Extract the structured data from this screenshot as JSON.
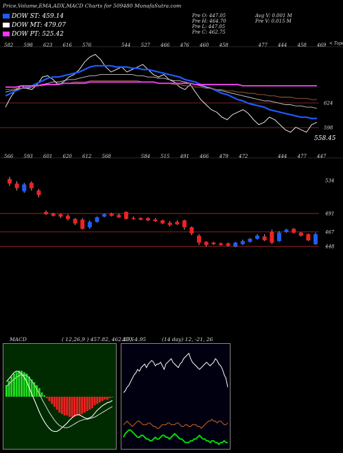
{
  "header": {
    "title": "Price,Volume,EMA,ADX,MACD Charts for 509480  MunafaSutra.com"
  },
  "legend": [
    {
      "label": "DOW ST: 459.14",
      "color": "#1e5cff"
    },
    {
      "label": "DOW MT: 479.07",
      "color": "#ffffff"
    },
    {
      "label": "DOW PT: 525.42",
      "color": "#ff33ff"
    }
  ],
  "quote": {
    "open": "Pre  O: 447.05",
    "high": "Pre  H: 464.70",
    "low": "Pre  L: 447.05",
    "close": "Pre  C: 462.75",
    "avg": "Avg V: 0.001 M",
    "vol": "Pre  V: 0.015 M"
  },
  "chart_data": [
    {
      "type": "line",
      "name": "price-ema",
      "top_labels": [
        "582",
        "598",
        "623",
        "616",
        "576",
        "",
        "544",
        "527",
        "466",
        "476",
        "460",
        "458",
        "",
        "477",
        "444",
        "458",
        "469"
      ],
      "corner_label": "< Tope",
      "right_labels": [
        "624",
        "598"
      ],
      "last_price": "558.45",
      "x": [
        1,
        2,
        3,
        4,
        5,
        6,
        7,
        8,
        9,
        10,
        11,
        12,
        13,
        14,
        15,
        16,
        17,
        18,
        19,
        20,
        21,
        22,
        23,
        24,
        25,
        26,
        27,
        28,
        29,
        30,
        31,
        32,
        33,
        34,
        35,
        36,
        37,
        38,
        39,
        40,
        41,
        42,
        43,
        44,
        45,
        46,
        47,
        48,
        49,
        50,
        51,
        52,
        53,
        54,
        55,
        56,
        57,
        58,
        59,
        60
      ],
      "series": [
        {
          "values": [
            598,
            606,
            612,
            615,
            613,
            612,
            616,
            622,
            623,
            620,
            616,
            618,
            622,
            624,
            628,
            634,
            638,
            640,
            636,
            630,
            626,
            628,
            630,
            626,
            628,
            630,
            632,
            628,
            624,
            622,
            624,
            620,
            618,
            614,
            612,
            616,
            610,
            604,
            600,
            596,
            594,
            590,
            588,
            592,
            594,
            596,
            593,
            588,
            584,
            586,
            590,
            588,
            584,
            580,
            578,
            582,
            580,
            578,
            584,
            586
          ],
          "color": "#ffffff"
        },
        {
          "values": [
            607,
            609,
            611,
            613,
            614,
            615,
            617,
            619,
            621,
            622,
            622,
            623,
            624,
            625,
            626,
            628,
            630,
            631,
            631,
            631,
            631,
            630,
            630,
            630,
            629,
            629,
            628,
            628,
            627,
            626,
            625,
            624,
            623,
            622,
            620,
            619,
            618,
            616,
            614,
            613,
            611,
            609,
            608,
            606,
            604,
            603,
            601,
            600,
            599,
            598,
            596,
            595,
            594,
            593,
            592,
            591,
            590,
            590,
            589,
            589
          ],
          "color": "#1e5cff"
        },
        {
          "values": [
            610,
            611,
            612,
            613,
            613,
            614,
            615,
            616,
            617,
            618,
            618,
            619,
            620,
            620,
            621,
            622,
            623,
            623,
            624,
            624,
            624,
            624,
            624,
            624,
            624,
            623,
            623,
            622,
            622,
            621,
            621,
            620,
            619,
            619,
            618,
            617,
            616,
            615,
            614,
            613,
            612,
            611,
            610,
            609,
            608,
            607,
            606,
            605,
            604,
            603,
            603,
            602,
            601,
            600,
            600,
            599,
            599,
            598,
            598,
            597
          ],
          "color": "#c8c8c8"
        },
        {
          "values": [
            612,
            612,
            613,
            613,
            614,
            614,
            615,
            615,
            616,
            616,
            617,
            617,
            617,
            618,
            618,
            618,
            619,
            619,
            619,
            619,
            619,
            619,
            619,
            619,
            619,
            619,
            618,
            618,
            618,
            617,
            617,
            617,
            616,
            616,
            615,
            615,
            614,
            614,
            613,
            613,
            612,
            612,
            611,
            611,
            610,
            610,
            609,
            609,
            608,
            608,
            607,
            607,
            606,
            606,
            606,
            605,
            605,
            605,
            604,
            604
          ],
          "color": "#a06040"
        },
        {
          "values": [
            614,
            614,
            614,
            615,
            615,
            615,
            615,
            616,
            616,
            616,
            616,
            617,
            617,
            617,
            617,
            617,
            618,
            618,
            618,
            618,
            618,
            618,
            618,
            618,
            618,
            618,
            618,
            618,
            618,
            617,
            617,
            617,
            617,
            617,
            617,
            617,
            616,
            616,
            616,
            616,
            616,
            616,
            616,
            616,
            616,
            615,
            615,
            615,
            615,
            615,
            615,
            615,
            615,
            615,
            615,
            615,
            615,
            615,
            615,
            615
          ],
          "color": "#ff44ff"
        }
      ]
    },
    {
      "type": "candlestick",
      "name": "price-candles",
      "top_labels": [
        "566",
        "593",
        "601",
        "620",
        "612",
        "568",
        "",
        "584",
        "515",
        "491",
        "466",
        "479",
        "472",
        "",
        "444",
        "477",
        "447"
      ],
      "right_labels": [
        "534",
        "491",
        "467",
        "448"
      ],
      "ylim": [
        440,
        560
      ],
      "candles": [
        {
          "o": 536,
          "c": 530,
          "h": 539,
          "l": 527
        },
        {
          "o": 530,
          "c": 524,
          "h": 533,
          "l": 521
        },
        {
          "o": 520,
          "c": 529,
          "h": 531,
          "l": 518
        },
        {
          "o": 531,
          "c": 524,
          "h": 533,
          "l": 521
        },
        {
          "o": 521,
          "c": 515,
          "h": 523,
          "l": 512
        },
        {
          "o": 493,
          "c": 490,
          "h": 495,
          "l": 489
        },
        {
          "o": 491,
          "c": 488,
          "h": 492,
          "l": 487
        },
        {
          "o": 490,
          "c": 487,
          "h": 491,
          "l": 485
        },
        {
          "o": 488,
          "c": 484,
          "h": 490,
          "l": 482
        },
        {
          "o": 484,
          "c": 478,
          "h": 485,
          "l": 476
        },
        {
          "o": 483,
          "c": 471,
          "h": 485,
          "l": 470
        },
        {
          "o": 473,
          "c": 480,
          "h": 482,
          "l": 471
        },
        {
          "o": 480,
          "c": 486,
          "h": 487,
          "l": 479
        },
        {
          "o": 487,
          "c": 490,
          "h": 491,
          "l": 486
        },
        {
          "o": 491,
          "c": 488,
          "h": 492,
          "l": 487
        },
        {
          "o": 489,
          "c": 486,
          "h": 491,
          "l": 485
        },
        {
          "o": 493,
          "c": 484,
          "h": 494,
          "l": 483
        },
        {
          "o": 485,
          "c": 484,
          "h": 487,
          "l": 483
        },
        {
          "o": 485,
          "c": 483,
          "h": 486,
          "l": 482
        },
        {
          "o": 485,
          "c": 482,
          "h": 486,
          "l": 481
        },
        {
          "o": 483,
          "c": 481,
          "h": 485,
          "l": 480
        },
        {
          "o": 482,
          "c": 478,
          "h": 483,
          "l": 477
        },
        {
          "o": 479,
          "c": 476,
          "h": 481,
          "l": 474
        },
        {
          "o": 480,
          "c": 477,
          "h": 482,
          "l": 476
        },
        {
          "o": 482,
          "c": 473,
          "h": 483,
          "l": 470
        },
        {
          "o": 473,
          "c": 465,
          "h": 474,
          "l": 463
        },
        {
          "o": 462,
          "c": 453,
          "h": 464,
          "l": 450
        },
        {
          "o": 454,
          "c": 450,
          "h": 455,
          "l": 448
        },
        {
          "o": 453,
          "c": 451,
          "h": 454,
          "l": 450
        },
        {
          "o": 452,
          "c": 450,
          "h": 453,
          "l": 449
        },
        {
          "o": 452,
          "c": 449,
          "h": 453,
          "l": 448
        },
        {
          "o": 448,
          "c": 453,
          "h": 454,
          "l": 447
        },
        {
          "o": 451,
          "c": 455,
          "h": 457,
          "l": 450
        },
        {
          "o": 454,
          "c": 458,
          "h": 459,
          "l": 453
        },
        {
          "o": 458,
          "c": 462,
          "h": 464,
          "l": 457
        },
        {
          "o": 461,
          "c": 456,
          "h": 464,
          "l": 455
        },
        {
          "o": 467,
          "c": 453,
          "h": 470,
          "l": 451
        },
        {
          "o": 455,
          "c": 466,
          "h": 468,
          "l": 454
        },
        {
          "o": 467,
          "c": 470,
          "h": 471,
          "l": 466
        },
        {
          "o": 471,
          "c": 466,
          "h": 472,
          "l": 465
        },
        {
          "o": 466,
          "c": 462,
          "h": 467,
          "l": 461
        },
        {
          "o": 464,
          "c": 456,
          "h": 465,
          "l": 455
        },
        {
          "o": 451,
          "c": 464,
          "h": 466,
          "l": 450
        }
      ]
    },
    {
      "type": "bar",
      "name": "macd",
      "label": "MACD",
      "params": "( 12,26,9 ) 457.82, 462.27, -4.95",
      "histogram": [
        8,
        11,
        14,
        16,
        17,
        18,
        18,
        17,
        16,
        14,
        12,
        10,
        8,
        6,
        3,
        1,
        -1,
        -3,
        -5,
        -7,
        -9,
        -11,
        -12,
        -13,
        -13,
        -14,
        -14,
        -14,
        -13,
        -13,
        -12,
        -11,
        -10,
        -9,
        -8,
        -6,
        -5,
        -4,
        -3,
        -2,
        -2,
        -1,
        0
      ],
      "macd_line": [
        20,
        24,
        28,
        32,
        34,
        33,
        30,
        26,
        20,
        12,
        4,
        -4,
        -12,
        -20,
        -27,
        -33,
        -38,
        -42,
        -45,
        -46,
        -46,
        -44,
        -41,
        -38,
        -35,
        -31,
        -28,
        -25,
        -24,
        -24,
        -26,
        -28,
        -29,
        -28,
        -26,
        -22,
        -18,
        -15,
        -12,
        -10,
        -8,
        -7,
        -5
      ],
      "signal_line": [
        14,
        17,
        20,
        23,
        26,
        28,
        29,
        29,
        28,
        25,
        21,
        16,
        10,
        4,
        -3,
        -9,
        -15,
        -21,
        -26,
        -31,
        -35,
        -38,
        -40,
        -41,
        -41,
        -40,
        -38,
        -36,
        -34,
        -32,
        -31,
        -30,
        -30,
        -29,
        -28,
        -27,
        -25,
        -23,
        -21,
        -19,
        -17,
        -15,
        -13
      ]
    },
    {
      "type": "line",
      "name": "adx",
      "label": "ADX",
      "params": "(14  day) 12,  -21,  26",
      "series": [
        {
          "values": [
            30,
            31,
            33,
            34,
            36,
            38,
            40,
            41,
            43,
            42,
            44,
            45,
            46,
            44,
            46,
            47,
            48,
            47,
            45,
            46,
            46,
            47,
            45,
            43,
            46,
            47,
            48,
            49,
            47,
            46,
            45,
            44,
            46,
            47,
            49,
            50,
            51,
            52,
            49,
            47,
            46,
            45,
            44,
            43,
            44,
            45,
            46,
            47,
            46,
            45,
            46,
            47,
            49,
            48,
            46,
            45,
            43,
            40,
            38,
            33
          ],
          "color": "#ffffff"
        },
        {
          "values": [
            5,
            7,
            8,
            9,
            9,
            8,
            7,
            6,
            5,
            5,
            6,
            6,
            5,
            4,
            4,
            3,
            3,
            4,
            5,
            4,
            4,
            5,
            6,
            6,
            5,
            5,
            4,
            5,
            6,
            7,
            6,
            5,
            4,
            4,
            3,
            2,
            2,
            2,
            3,
            3,
            4,
            4,
            5,
            6,
            5,
            4,
            4,
            3,
            3,
            2,
            3,
            3,
            2,
            2,
            1,
            2,
            2,
            3,
            2,
            2
          ],
          "color": "#00dd00"
        },
        {
          "values": [
            12,
            13,
            14,
            13,
            12,
            11,
            12,
            13,
            14,
            14,
            13,
            12,
            12,
            12,
            13,
            13,
            12,
            11,
            11,
            10,
            10,
            11,
            12,
            12,
            12,
            13,
            13,
            12,
            12,
            12,
            13,
            13,
            12,
            11,
            11,
            12,
            12,
            11,
            11,
            12,
            12,
            12,
            11,
            11,
            10,
            11,
            12,
            13,
            14,
            14,
            15,
            14,
            14,
            13,
            14,
            14,
            13,
            12,
            12,
            13
          ],
          "color": "#d2691e"
        }
      ]
    }
  ]
}
